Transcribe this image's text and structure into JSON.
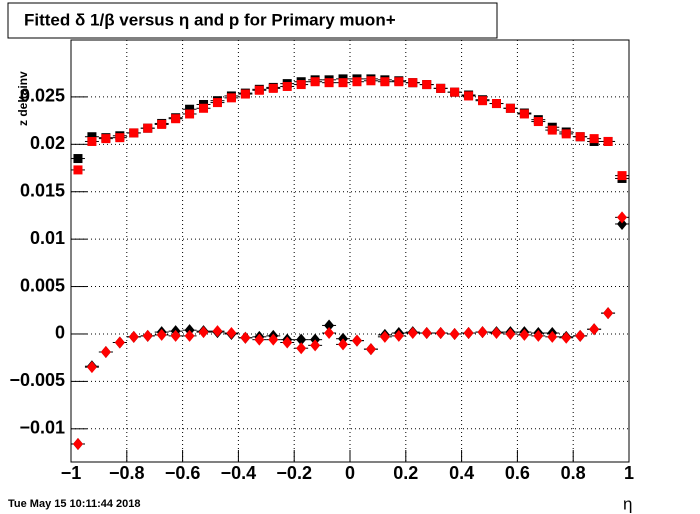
{
  "chart_data": {
    "type": "scatter",
    "title": "Fitted δ 1/β versus η and p for Primary muon+",
    "xlabel": "η",
    "ylabel": "z deltainv",
    "timestamp": "Tue May 15 10:11:44 2018",
    "grid": true,
    "x": [
      -0.975,
      -0.925,
      -0.875,
      -0.825,
      -0.775,
      -0.725,
      -0.675,
      -0.625,
      -0.575,
      -0.525,
      -0.475,
      -0.425,
      -0.375,
      -0.325,
      -0.275,
      -0.225,
      -0.175,
      -0.125,
      -0.075,
      -0.025,
      0.025,
      0.075,
      0.125,
      0.175,
      0.225,
      0.275,
      0.325,
      0.375,
      0.425,
      0.475,
      0.525,
      0.575,
      0.625,
      0.675,
      0.725,
      0.775,
      0.825,
      0.875,
      0.925,
      0.975
    ],
    "series": [
      {
        "color": "#000000",
        "marker": "square",
        "values": [
          0.0185,
          0.0208,
          0.0207,
          0.0209,
          0.0212,
          0.0217,
          0.0222,
          0.0228,
          0.0237,
          0.0242,
          0.0246,
          0.0251,
          0.0254,
          0.0258,
          0.026,
          0.0264,
          0.0266,
          0.0268,
          0.0268,
          0.0269,
          0.0269,
          0.0269,
          0.0268,
          0.0267,
          0.0265,
          0.0263,
          0.0259,
          0.0255,
          0.0252,
          0.0247,
          0.0243,
          0.0238,
          0.0233,
          0.0226,
          0.0218,
          0.0213,
          0.0208,
          0.0203,
          0.0203,
          0.0164
        ]
      },
      {
        "color": "#ff0000",
        "marker": "square",
        "values": [
          0.0173,
          0.0203,
          0.0206,
          0.0207,
          0.0212,
          0.0217,
          0.0221,
          0.0227,
          0.0232,
          0.0238,
          0.0244,
          0.0249,
          0.0253,
          0.0257,
          0.0259,
          0.0261,
          0.0263,
          0.0266,
          0.0265,
          0.0265,
          0.0266,
          0.0267,
          0.0266,
          0.0266,
          0.0265,
          0.0263,
          0.0259,
          0.0255,
          0.0251,
          0.0246,
          0.0243,
          0.0238,
          0.0232,
          0.0224,
          0.0215,
          0.0211,
          0.0208,
          0.0206,
          0.0203,
          0.0167
        ]
      },
      {
        "color": "#000000",
        "marker": "diamond",
        "values": [
          -0.0116,
          -0.0034,
          -0.0019,
          -0.0009,
          -0.0003,
          -0.0002,
          0.0002,
          0.0003,
          0.0004,
          0.0003,
          0.0002,
          0,
          -0.0004,
          -0.0003,
          -0.0002,
          -0.0006,
          -0.0006,
          -0.0006,
          0.0009,
          -0.0005,
          -0.0007,
          -0.0016,
          -0.0001,
          0.0001,
          0.0002,
          0.0001,
          0.0001,
          0,
          0.0001,
          0.0002,
          0.0002,
          0.0002,
          0.0002,
          0.0001,
          0.0001,
          -0.0003,
          -0.0002,
          0.0005,
          0.0022,
          0.0116
        ]
      },
      {
        "color": "#ff0000",
        "marker": "diamond",
        "values": [
          -0.0116,
          -0.0035,
          -0.0019,
          -0.0009,
          -0.0003,
          -0.0002,
          -0.0001,
          -0.0002,
          -0.0002,
          0.0002,
          0.0003,
          0.0001,
          -0.0004,
          -0.0006,
          -0.0006,
          -0.0009,
          -0.0015,
          -0.0012,
          0.0001,
          -0.0011,
          -0.0007,
          -0.0016,
          -0.0003,
          -0.0002,
          0.0001,
          0.0001,
          0.0001,
          0,
          0.0001,
          0.0002,
          0.0001,
          0,
          -0.0001,
          -0.0002,
          -0.0003,
          -0.0004,
          -0.0002,
          0.0005,
          0.0022,
          0.0123
        ]
      }
    ],
    "xlim": [
      -1,
      1
    ],
    "xticks": [
      {
        "value": -1,
        "label": "−1"
      },
      {
        "value": -0.8,
        "label": "−0.8"
      },
      {
        "value": -0.6,
        "label": "−0.6"
      },
      {
        "value": -0.4,
        "label": "−0.4"
      },
      {
        "value": -0.2,
        "label": "−0.2"
      },
      0,
      0.2,
      0.4,
      0.6,
      0.8,
      1
    ],
    "ylim": [
      -0.0135,
      0.031
    ],
    "yticks": [
      {
        "value": -0.01,
        "label": "−0.01"
      },
      {
        "value": -0.005,
        "label": "−0.005"
      },
      0,
      0.005,
      0.01,
      0.015,
      0.02,
      0.025
    ]
  }
}
